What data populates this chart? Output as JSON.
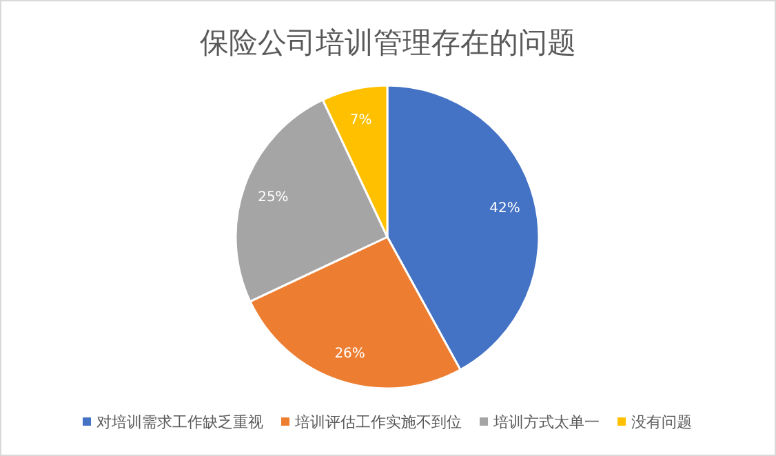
{
  "chart_data": {
    "type": "pie",
    "title": "保险公司培训管理存在的问题",
    "categories": [
      "对培训需求工作缺乏重视",
      "培训评估工作实施不到位",
      "培训方式太单一",
      "没有问题"
    ],
    "values": [
      42,
      26,
      25,
      7
    ],
    "colors": [
      "#4472c4",
      "#ed7d31",
      "#a5a5a5",
      "#ffc000"
    ],
    "value_labels": [
      "42%",
      "26%",
      "25%",
      "7%"
    ],
    "legend": "bottom"
  }
}
